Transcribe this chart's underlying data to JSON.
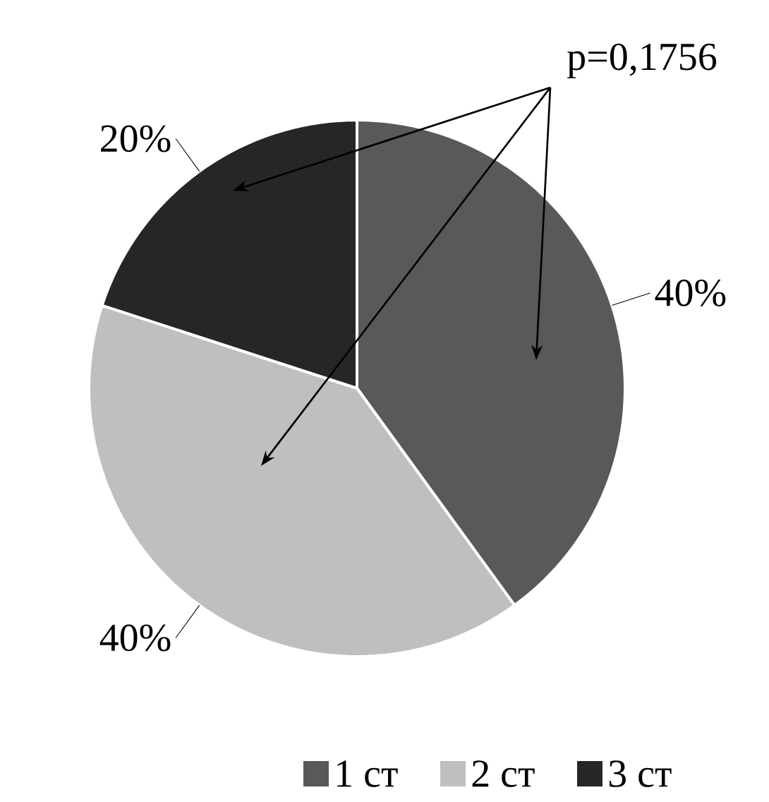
{
  "chart_data": {
    "type": "pie",
    "categories": [
      "1 ст",
      "2 ст",
      "3 ст"
    ],
    "values": [
      40,
      40,
      20
    ],
    "value_labels": [
      "40%",
      "40%",
      "20%"
    ],
    "colors": [
      "#595959",
      "#bfbfbf",
      "#262626"
    ],
    "legend": "bottom",
    "annotations": [
      "p=0,1756"
    ]
  }
}
